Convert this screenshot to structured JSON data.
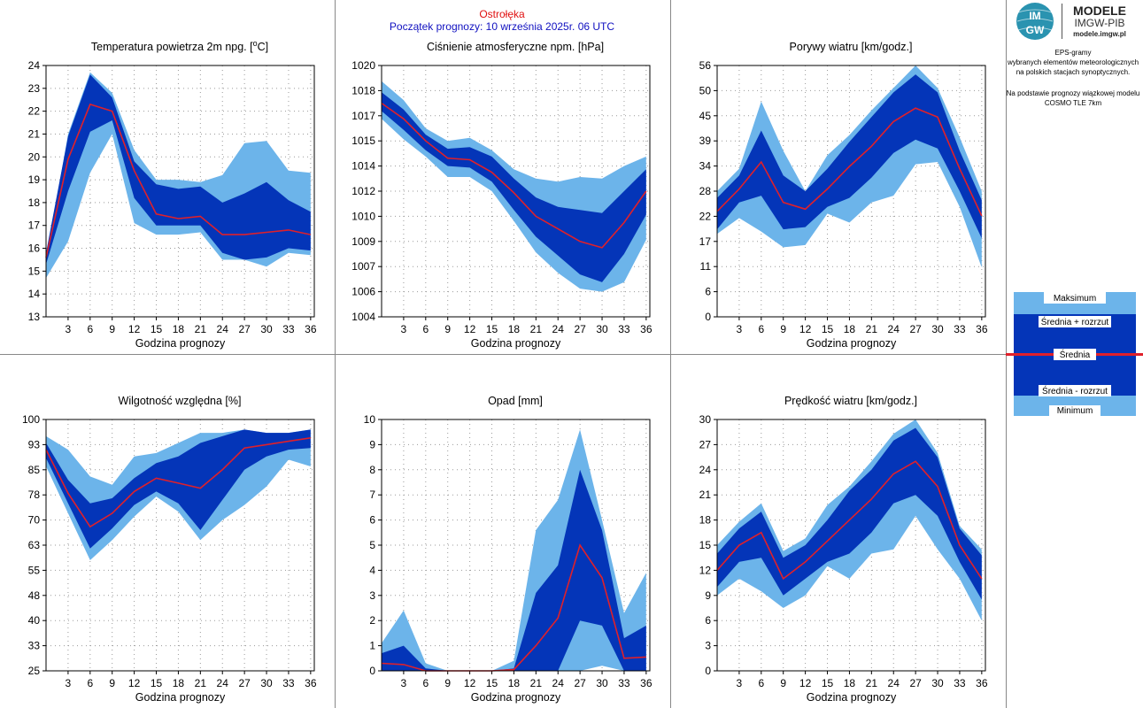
{
  "header": {
    "station": "Ostrołęka",
    "forecast_start": "Początek prognozy: 10 września 2025r. 06 UTC"
  },
  "logo": {
    "mark_top": "IM",
    "mark_bottom": "GW",
    "title": "MODELE",
    "subtitle": "IMGW-PIB",
    "url": "modele.imgw.pl"
  },
  "side_text": {
    "lines": [
      "EPS-gramy",
      "wybranych elementów meteorologicznych",
      "na polskich stacjach  synoptycznych.",
      "",
      "Na podstawie prognozy wiązkowej modelu",
      "COSMO TLE 7km"
    ]
  },
  "legend": {
    "max": "Maksimum",
    "mean_plus": "Średnia + rozrzut",
    "mean": "Średnia",
    "mean_minus": "Średnia - rozrzut",
    "min": "Minimum"
  },
  "colors": {
    "outer_band": "#6cb4ea",
    "inner_band": "#0435b8",
    "mean_line": "#e0202a",
    "grid": "#9a9a9a",
    "frame": "#888888"
  },
  "chart_data": [
    {
      "type": "area",
      "title": "Temperatura powietrza 2m npg. [oC]",
      "xlabel": "Godzina prognozy",
      "ylabel": "",
      "x": [
        0,
        3,
        6,
        9,
        12,
        15,
        18,
        21,
        24,
        27,
        30,
        33,
        36
      ],
      "xticks": [
        3,
        6,
        9,
        12,
        15,
        18,
        21,
        24,
        27,
        30,
        33,
        36
      ],
      "ylim": [
        13,
        24
      ],
      "yticks": [
        13,
        14,
        15,
        16,
        17,
        18,
        19,
        20,
        21,
        22,
        23,
        24
      ],
      "ytick_labels": [
        "13",
        "14",
        "15",
        "16",
        "17",
        "18",
        "19",
        "20",
        "21",
        "22",
        "23",
        "24"
      ],
      "series": [
        {
          "name": "Maksimum",
          "values": [
            15.5,
            21.0,
            23.7,
            22.8,
            20.3,
            19.0,
            19.0,
            18.9,
            19.2,
            20.6,
            20.7,
            19.4,
            19.3
          ]
        },
        {
          "name": "Średnia + rozrzut",
          "values": [
            15.8,
            20.9,
            23.6,
            22.6,
            19.8,
            18.8,
            18.6,
            18.7,
            18.0,
            18.4,
            18.9,
            18.1,
            17.6
          ]
        },
        {
          "name": "Średnia",
          "values": [
            15.6,
            19.9,
            22.3,
            22.0,
            19.4,
            17.5,
            17.3,
            17.4,
            16.6,
            16.6,
            16.7,
            16.8,
            16.6
          ]
        },
        {
          "name": "Średnia - rozrzut",
          "values": [
            15.3,
            18.5,
            21.1,
            21.6,
            18.2,
            17.0,
            17.0,
            17.0,
            15.8,
            15.5,
            15.6,
            16.0,
            15.9
          ]
        },
        {
          "name": "Minimum",
          "values": [
            14.7,
            16.3,
            19.3,
            21.0,
            17.1,
            16.6,
            16.6,
            16.7,
            15.5,
            15.5,
            15.2,
            15.8,
            15.7
          ]
        }
      ]
    },
    {
      "type": "area",
      "title": "Ciśnienie atmosferyczne npm. [hPa]",
      "xlabel": "Godzina prognozy",
      "ylabel": "",
      "x": [
        0,
        3,
        6,
        9,
        12,
        15,
        18,
        21,
        24,
        27,
        30,
        33,
        36
      ],
      "xticks": [
        3,
        6,
        9,
        12,
        15,
        18,
        21,
        24,
        27,
        30,
        33,
        36
      ],
      "ylim": [
        1004,
        1020
      ],
      "yticks": [
        1004,
        1006,
        1008,
        1010,
        1012,
        1014,
        1016,
        1018,
        1020
      ],
      "ytick_labels": [
        "1004",
        "1006",
        "1007",
        "1009",
        "1010",
        "1012",
        "1014",
        "1015",
        "1017",
        "1018",
        "1020"
      ],
      "ytick_values": [
        1004,
        1005.6,
        1007.2,
        1008.8,
        1010.4,
        1012,
        1013.6,
        1015.2,
        1016.8,
        1018.4,
        1020
      ],
      "series": [
        {
          "name": "Maksimum",
          "values": [
            1019.0,
            1017.8,
            1016.0,
            1015.2,
            1015.4,
            1014.6,
            1013.4,
            1012.8,
            1012.6,
            1012.9,
            1012.8,
            1013.6,
            1014.2
          ]
        },
        {
          "name": "Średnia + rozrzut",
          "values": [
            1018.3,
            1017.2,
            1015.6,
            1014.7,
            1014.8,
            1014.2,
            1012.8,
            1011.6,
            1011.0,
            1010.8,
            1010.6,
            1012.0,
            1013.4
          ]
        },
        {
          "name": "Średnia",
          "values": [
            1017.6,
            1016.6,
            1015.2,
            1014.1,
            1014.0,
            1013.2,
            1011.9,
            1010.4,
            1009.6,
            1008.8,
            1008.4,
            1010.0,
            1012.0
          ]
        },
        {
          "name": "Średnia - rozrzut",
          "values": [
            1017.1,
            1015.9,
            1014.6,
            1013.6,
            1013.5,
            1012.6,
            1010.8,
            1009.1,
            1007.9,
            1006.7,
            1006.2,
            1008.0,
            1010.5
          ]
        },
        {
          "name": "Minimum",
          "values": [
            1016.6,
            1015.3,
            1014.2,
            1012.9,
            1012.9,
            1012.0,
            1010.1,
            1008.1,
            1006.8,
            1005.8,
            1005.6,
            1006.2,
            1008.9
          ]
        }
      ]
    },
    {
      "type": "area",
      "title": "Porywy wiatru [km/godz.]",
      "xlabel": "Godzina prognozy",
      "ylabel": "",
      "x": [
        0,
        3,
        6,
        9,
        12,
        15,
        18,
        21,
        24,
        27,
        30,
        33,
        36
      ],
      "xticks": [
        3,
        6,
        9,
        12,
        15,
        18,
        21,
        24,
        27,
        30,
        33,
        36
      ],
      "ylim": [
        0,
        56
      ],
      "yticks": [
        0,
        5.6,
        11.2,
        16.8,
        22.4,
        28,
        33.6,
        39.2,
        44.8,
        50.4,
        56
      ],
      "ytick_labels": [
        "0",
        "6",
        "11",
        "17",
        "22",
        "28",
        "34",
        "39",
        "45",
        "50",
        "56"
      ],
      "series": [
        {
          "name": "Maksimum",
          "values": [
            28.0,
            33.0,
            48.0,
            37.0,
            28.0,
            36.0,
            40.5,
            46.0,
            51.0,
            56.0,
            51.0,
            40.0,
            28.0
          ]
        },
        {
          "name": "Średnia + rozrzut",
          "values": [
            26.5,
            31.5,
            41.5,
            31.5,
            28.0,
            33.0,
            39.0,
            44.5,
            50.0,
            54.0,
            50.0,
            37.0,
            26.0
          ]
        },
        {
          "name": "Średnia",
          "values": [
            23.5,
            28.5,
            34.5,
            25.5,
            24.0,
            28.5,
            33.5,
            38.0,
            43.5,
            46.5,
            44.5,
            33.0,
            22.5
          ]
        },
        {
          "name": "Średnia - rozrzut",
          "values": [
            19.5,
            25.5,
            27.0,
            19.5,
            20.0,
            24.5,
            26.5,
            31.0,
            36.5,
            39.5,
            37.5,
            28.0,
            17.5
          ]
        },
        {
          "name": "Minimum",
          "values": [
            18.5,
            22.0,
            19.0,
            15.5,
            16.0,
            23.0,
            21.0,
            25.5,
            27.0,
            34.0,
            34.5,
            24.5,
            11.0
          ]
        }
      ]
    },
    {
      "type": "area",
      "title": "Wilgotność względna [%]",
      "xlabel": "Godzina prognozy",
      "ylabel": "",
      "x": [
        0,
        3,
        6,
        9,
        12,
        15,
        18,
        21,
        24,
        27,
        30,
        33,
        36
      ],
      "xticks": [
        3,
        6,
        9,
        12,
        15,
        18,
        21,
        24,
        27,
        30,
        33,
        36
      ],
      "ylim": [
        25,
        100
      ],
      "yticks": [
        25,
        32.5,
        40,
        47.5,
        55,
        62.5,
        70,
        77.5,
        85,
        92.5,
        100
      ],
      "ytick_labels": [
        "25",
        "33",
        "40",
        "48",
        "55",
        "63",
        "70",
        "78",
        "85",
        "93",
        "100"
      ],
      "series": [
        {
          "name": "Maksimum",
          "values": [
            95.0,
            91.0,
            83.0,
            80.5,
            89.0,
            90.0,
            93.0,
            96.0,
            96.0,
            97.0,
            96.0,
            96.0,
            97.0
          ]
        },
        {
          "name": "Średnia + rozrzut",
          "values": [
            93.0,
            82.0,
            75.0,
            76.5,
            82.5,
            87.0,
            89.0,
            93.0,
            95.0,
            97.0,
            96.0,
            96.0,
            97.0
          ]
        },
        {
          "name": "Średnia",
          "values": [
            91.0,
            78.0,
            68.0,
            72.0,
            78.5,
            82.5,
            81.0,
            79.5,
            85.0,
            91.5,
            92.5,
            93.5,
            94.5
          ]
        },
        {
          "name": "Średnia - rozrzut",
          "values": [
            88.5,
            75.0,
            61.5,
            67.5,
            74.5,
            78.5,
            75.0,
            67.0,
            76.0,
            85.0,
            89.0,
            91.0,
            91.5
          ]
        },
        {
          "name": "Minimum",
          "values": [
            86.0,
            72.0,
            58.0,
            64.0,
            71.0,
            77.0,
            72.5,
            64.0,
            70.0,
            74.5,
            80.0,
            88.0,
            86.0
          ]
        }
      ]
    },
    {
      "type": "area",
      "title": "Opad [mm]",
      "xlabel": "Godzina prognozy",
      "ylabel": "",
      "x": [
        0,
        3,
        6,
        9,
        12,
        15,
        18,
        21,
        24,
        27,
        30,
        33,
        36
      ],
      "xticks": [
        3,
        6,
        9,
        12,
        15,
        18,
        21,
        24,
        27,
        30,
        33,
        36
      ],
      "ylim": [
        0,
        10
      ],
      "yticks": [
        0,
        1,
        2,
        3,
        4,
        5,
        6,
        7,
        8,
        9,
        10
      ],
      "ytick_labels": [
        "0",
        "1",
        "2",
        "3",
        "4",
        "5",
        "6",
        "7",
        "8",
        "9",
        "10"
      ],
      "series": [
        {
          "name": "Maksimum",
          "values": [
            1.1,
            2.4,
            0.3,
            0.0,
            0.0,
            0.0,
            0.4,
            5.6,
            6.8,
            9.6,
            6.0,
            2.3,
            3.9
          ]
        },
        {
          "name": "Średnia + rozrzut",
          "values": [
            0.7,
            1.0,
            0.1,
            0.0,
            0.0,
            0.0,
            0.1,
            3.1,
            4.2,
            8.0,
            5.6,
            1.3,
            1.8
          ]
        },
        {
          "name": "Średnia",
          "values": [
            0.3,
            0.25,
            0.0,
            0.0,
            0.0,
            0.0,
            0.05,
            1.0,
            2.1,
            5.0,
            3.7,
            0.5,
            0.55
          ]
        },
        {
          "name": "Średnia - rozrzut",
          "values": [
            0.0,
            0.0,
            0.0,
            0.0,
            0.0,
            0.0,
            0.0,
            0.0,
            0.0,
            2.0,
            1.8,
            0.0,
            0.0
          ]
        },
        {
          "name": "Minimum",
          "values": [
            0.0,
            0.0,
            0.0,
            0.0,
            0.0,
            0.0,
            0.0,
            0.0,
            0.0,
            0.0,
            0.2,
            0.0,
            0.0
          ]
        }
      ]
    },
    {
      "type": "area",
      "title": "Prędkość wiatru [km/godz.]",
      "xlabel": "Godzina prognozy",
      "ylabel": "",
      "x": [
        0,
        3,
        6,
        9,
        12,
        15,
        18,
        21,
        24,
        27,
        30,
        33,
        36
      ],
      "xticks": [
        3,
        6,
        9,
        12,
        15,
        18,
        21,
        24,
        27,
        30,
        33,
        36
      ],
      "ylim": [
        0,
        30
      ],
      "yticks": [
        0,
        3,
        6,
        9,
        12,
        15,
        18,
        21,
        24,
        27,
        30
      ],
      "ytick_labels": [
        "0",
        "3",
        "6",
        "9",
        "12",
        "15",
        "18",
        "21",
        "24",
        "27",
        "30"
      ],
      "series": [
        {
          "name": "Maksimum",
          "values": [
            15.0,
            17.8,
            20.0,
            14.3,
            15.8,
            19.8,
            22.0,
            25.0,
            28.3,
            30.0,
            26.0,
            17.3,
            14.5
          ]
        },
        {
          "name": "Średnia + rozrzut",
          "values": [
            14.0,
            17.0,
            19.0,
            13.5,
            15.0,
            18.0,
            21.5,
            24.0,
            27.5,
            29.0,
            25.5,
            17.0,
            13.8
          ]
        },
        {
          "name": "Średnia",
          "values": [
            12.0,
            15.0,
            16.5,
            11.0,
            13.0,
            15.5,
            18.0,
            20.5,
            23.5,
            25.0,
            22.0,
            15.0,
            11.0
          ]
        },
        {
          "name": "Średnia - rozrzut",
          "values": [
            10.0,
            13.0,
            13.5,
            9.0,
            11.0,
            13.0,
            14.0,
            16.5,
            20.0,
            21.0,
            18.5,
            13.0,
            8.5
          ]
        },
        {
          "name": "Minimum",
          "values": [
            9.0,
            11.0,
            9.5,
            7.5,
            9.0,
            12.5,
            11.0,
            14.0,
            14.5,
            18.5,
            14.5,
            11.0,
            6.0
          ]
        }
      ]
    }
  ]
}
